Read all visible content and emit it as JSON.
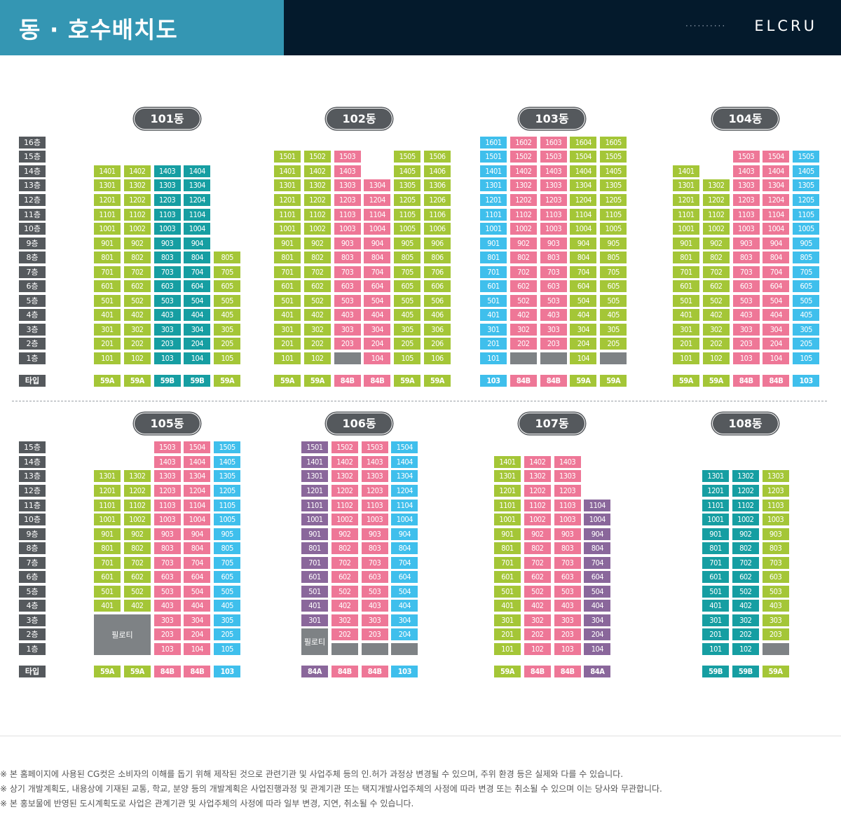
{
  "header": {
    "title": "동 · 호수배치도",
    "brand": "ELCRU",
    "dots": "··········"
  },
  "colors": {
    "G": "#a4c637",
    "C": "#169ea2",
    "P": "#ee7797",
    "B": "#3fbfec",
    "V": "#8a679b",
    "X": "#7e8285",
    "label": "#55595d"
  },
  "floor_suffix": "층",
  "type_label": "타입",
  "piloti": "필로티",
  "buildings": [
    {
      "name": "101동",
      "cols": [
        {
          "c": "G",
          "from": 1,
          "to": 14,
          "type": "59A",
          "blank": []
        },
        {
          "c": "G",
          "from": 1,
          "to": 14,
          "type": "59A",
          "blank": []
        },
        {
          "c": "C",
          "from": 1,
          "to": 14,
          "type": "59B",
          "blank": []
        },
        {
          "c": "C",
          "from": 1,
          "to": 14,
          "type": "59B",
          "blank": []
        },
        {
          "c": "G",
          "from": 1,
          "to": 8,
          "type": "59A",
          "blank": []
        }
      ]
    },
    {
      "name": "102동",
      "cols": [
        {
          "c": "G",
          "from": 1,
          "to": 15,
          "type": "59A",
          "blank": []
        },
        {
          "c": "G",
          "from": 1,
          "to": 15,
          "type": "59A",
          "blank": []
        },
        {
          "c": "P",
          "from": 1,
          "to": 15,
          "type": "84B",
          "blank": [
            1
          ]
        },
        {
          "c": "P",
          "from": 1,
          "to": 13,
          "type": "84B",
          "blank": []
        },
        {
          "c": "G",
          "from": 1,
          "to": 15,
          "type": "59A",
          "blank": []
        },
        {
          "c": "G",
          "from": 1,
          "to": 15,
          "type": "59A",
          "blank": []
        }
      ]
    },
    {
      "name": "103동",
      "cols": [
        {
          "c": "B",
          "from": 1,
          "to": 16,
          "type": "103",
          "blank": []
        },
        {
          "c": "P",
          "from": 1,
          "to": 16,
          "type": "84B",
          "blank": [
            1
          ]
        },
        {
          "c": "P",
          "from": 1,
          "to": 16,
          "type": "84B",
          "blank": [
            1
          ]
        },
        {
          "c": "G",
          "from": 1,
          "to": 16,
          "type": "59A",
          "blank": []
        },
        {
          "c": "G",
          "from": 1,
          "to": 16,
          "type": "59A",
          "blank": [
            1
          ]
        }
      ]
    },
    {
      "name": "104동",
      "cols": [
        {
          "c": "G",
          "from": 1,
          "to": 14,
          "type": "59A",
          "blank": []
        },
        {
          "c": "G",
          "from": 1,
          "to": 13,
          "type": "59A",
          "blank": []
        },
        {
          "c": "P",
          "from": 1,
          "to": 15,
          "type": "84B",
          "blank": []
        },
        {
          "c": "P",
          "from": 1,
          "to": 15,
          "type": "84B",
          "blank": []
        },
        {
          "c": "B",
          "from": 1,
          "to": 15,
          "type": "103",
          "blank": []
        }
      ]
    },
    {
      "name": "105동",
      "pilo": {
        "col": 0,
        "span": 2,
        "from": 1,
        "to": 3
      },
      "cols": [
        {
          "c": "G",
          "from": 4,
          "to": 13,
          "type": "59A",
          "blank": []
        },
        {
          "c": "G",
          "from": 4,
          "to": 13,
          "type": "59A",
          "blank": []
        },
        {
          "c": "P",
          "from": 1,
          "to": 15,
          "type": "84B",
          "blank": []
        },
        {
          "c": "P",
          "from": 1,
          "to": 15,
          "type": "84B",
          "blank": []
        },
        {
          "c": "B",
          "from": 1,
          "to": 15,
          "type": "103",
          "blank": []
        }
      ]
    },
    {
      "name": "106동",
      "pilo": {
        "col": 0,
        "span": 1,
        "from": 1,
        "to": 2
      },
      "cols": [
        {
          "c": "V",
          "from": 3,
          "to": 15,
          "type": "84A",
          "blank": []
        },
        {
          "c": "P",
          "from": 1,
          "to": 15,
          "type": "84B",
          "blank": [
            1
          ]
        },
        {
          "c": "P",
          "from": 1,
          "to": 15,
          "type": "84B",
          "blank": [
            1
          ]
        },
        {
          "c": "B",
          "from": 1,
          "to": 15,
          "type": "103",
          "blank": [
            1
          ]
        }
      ]
    },
    {
      "name": "107동",
      "cols": [
        {
          "c": "G",
          "from": 1,
          "to": 14,
          "type": "59A",
          "blank": []
        },
        {
          "c": "P",
          "from": 1,
          "to": 14,
          "type": "84B",
          "blank": []
        },
        {
          "c": "P",
          "from": 1,
          "to": 14,
          "type": "84B",
          "blank": []
        },
        {
          "c": "V",
          "from": 1,
          "to": 11,
          "type": "84A",
          "blank": []
        }
      ]
    },
    {
      "name": "108동",
      "cols": [
        {
          "c": "C",
          "from": 1,
          "to": 13,
          "type": "59B",
          "blank": []
        },
        {
          "c": "C",
          "from": 1,
          "to": 13,
          "type": "59B",
          "blank": []
        },
        {
          "c": "G",
          "from": 1,
          "to": 13,
          "type": "59A",
          "blank": [
            1
          ]
        }
      ]
    }
  ],
  "notes": [
    "※ 본 홈페이지에 사용된 CG컷은 소비자의 이해를 돕기 위해 제작된 것으로 관련기관 및 사업주체 등의 인.허가 과정상 변경될 수 있으며, 주위 환경 등은 실제와 다를 수 있습니다.",
    "※ 상기 개발계획도, 내용상에 기재된 교통, 학교, 분양 등의 개발계획은 사업진행과정 및 관계기관 또는 택지개발사업주체의 사정에 따라 변경 또는 취소될 수 있으며 이는 당사와 무관합니다.",
    "※ 본 홍보물에 반영된 도시계획도로 사업은 관계기관 및 사업주체의 사정에 따라 일부 변경, 지연, 취소될 수 있습니다."
  ]
}
